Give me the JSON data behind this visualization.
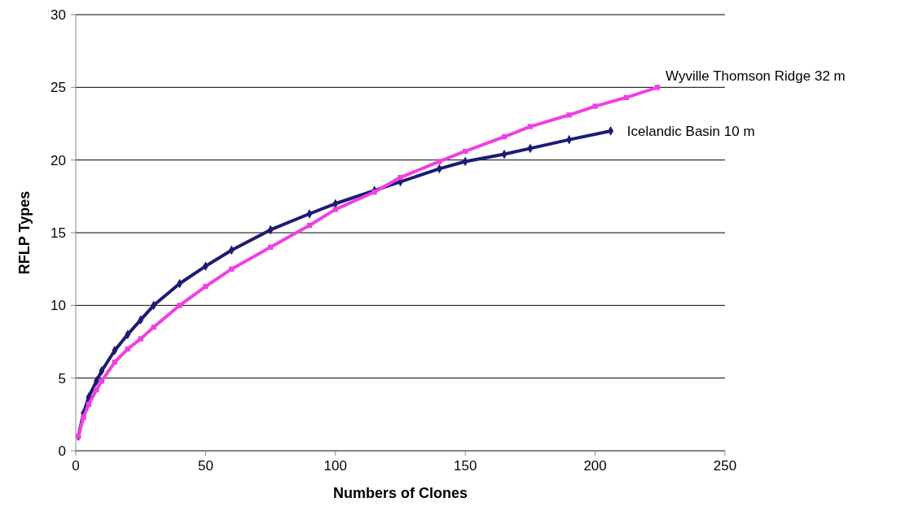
{
  "chart_data": {
    "type": "line",
    "xlabel": "Numbers of Clones",
    "ylabel": "RFLP Types",
    "xlim": [
      0,
      250
    ],
    "xticks": [
      0,
      50,
      100,
      150,
      200,
      250
    ],
    "ylim": [
      0,
      30
    ],
    "yticks": [
      0,
      5,
      10,
      15,
      20,
      25,
      30
    ],
    "grid": "y",
    "series": [
      {
        "name": "Icelandic Basin 10 m",
        "color": "#1c1c74",
        "marker": "diamond",
        "x": [
          1,
          3,
          5,
          8,
          10,
          15,
          20,
          25,
          30,
          40,
          50,
          60,
          75,
          90,
          100,
          115,
          125,
          140,
          150,
          165,
          175,
          190,
          206
        ],
        "values": [
          1,
          2.6,
          3.7,
          4.8,
          5.5,
          6.9,
          8,
          9,
          10,
          11.5,
          12.7,
          13.8,
          15.2,
          16.3,
          17,
          17.9,
          18.5,
          19.4,
          19.9,
          20.4,
          20.8,
          21.4,
          22
        ]
      },
      {
        "name": "Wyville Thomson Ridge 32 m",
        "color": "#f040e0",
        "marker": "square",
        "x": [
          1,
          3,
          5,
          8,
          10,
          15,
          20,
          25,
          30,
          40,
          50,
          60,
          75,
          90,
          100,
          115,
          125,
          140,
          150,
          165,
          175,
          190,
          200,
          212,
          224
        ],
        "values": [
          1,
          2.3,
          3.2,
          4.2,
          4.8,
          6.1,
          7,
          7.7,
          8.5,
          10,
          11.3,
          12.5,
          14,
          15.5,
          16.6,
          17.8,
          18.8,
          19.9,
          20.6,
          21.6,
          22.3,
          23.1,
          23.7,
          24.3,
          25
        ]
      }
    ]
  }
}
